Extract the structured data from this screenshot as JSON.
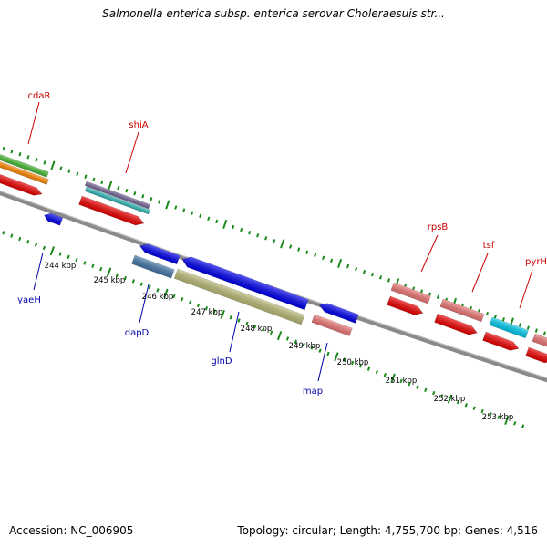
{
  "title": "Salmonella enterica subsp. enterica serovar Choleraesuis str...",
  "footer": {
    "accession": "Accession: NC_006905",
    "summary": "Topology: circular; Length: 4,755,700 bp; Genes: 4,516"
  },
  "colors": {
    "top_label": "#cc0000",
    "bottom_label": "#0000aa",
    "tick": "#1a8a1a",
    "backbone": "#8a8a8a"
  },
  "genes_top": [
    {
      "id": "cdaR",
      "label": "cdaR"
    },
    {
      "id": "shiA",
      "label": "shiA"
    },
    {
      "id": "rpsB",
      "label": "rpsB"
    },
    {
      "id": "tsf",
      "label": "tsf"
    },
    {
      "id": "pyrH",
      "label": "pyrH"
    }
  ],
  "genes_bottom": [
    {
      "id": "yaeH",
      "label": "yaeH"
    },
    {
      "id": "dapD",
      "label": "dapD"
    },
    {
      "id": "glnD",
      "label": "glnD"
    },
    {
      "id": "map",
      "label": "map"
    }
  ],
  "scale_labels": [
    {
      "id": "244",
      "label": "244 kbp"
    },
    {
      "id": "245",
      "label": "245 kbp"
    },
    {
      "id": "246",
      "label": "246 kbp"
    },
    {
      "id": "247",
      "label": "247 kbp"
    },
    {
      "id": "248",
      "label": "248 kbp"
    },
    {
      "id": "249",
      "label": "249 kbp"
    },
    {
      "id": "250",
      "label": "250 kbp"
    },
    {
      "id": "251",
      "label": "251 kbp"
    },
    {
      "id": "252",
      "label": "252 kbp"
    },
    {
      "id": "253",
      "label": "253 kbp"
    }
  ]
}
